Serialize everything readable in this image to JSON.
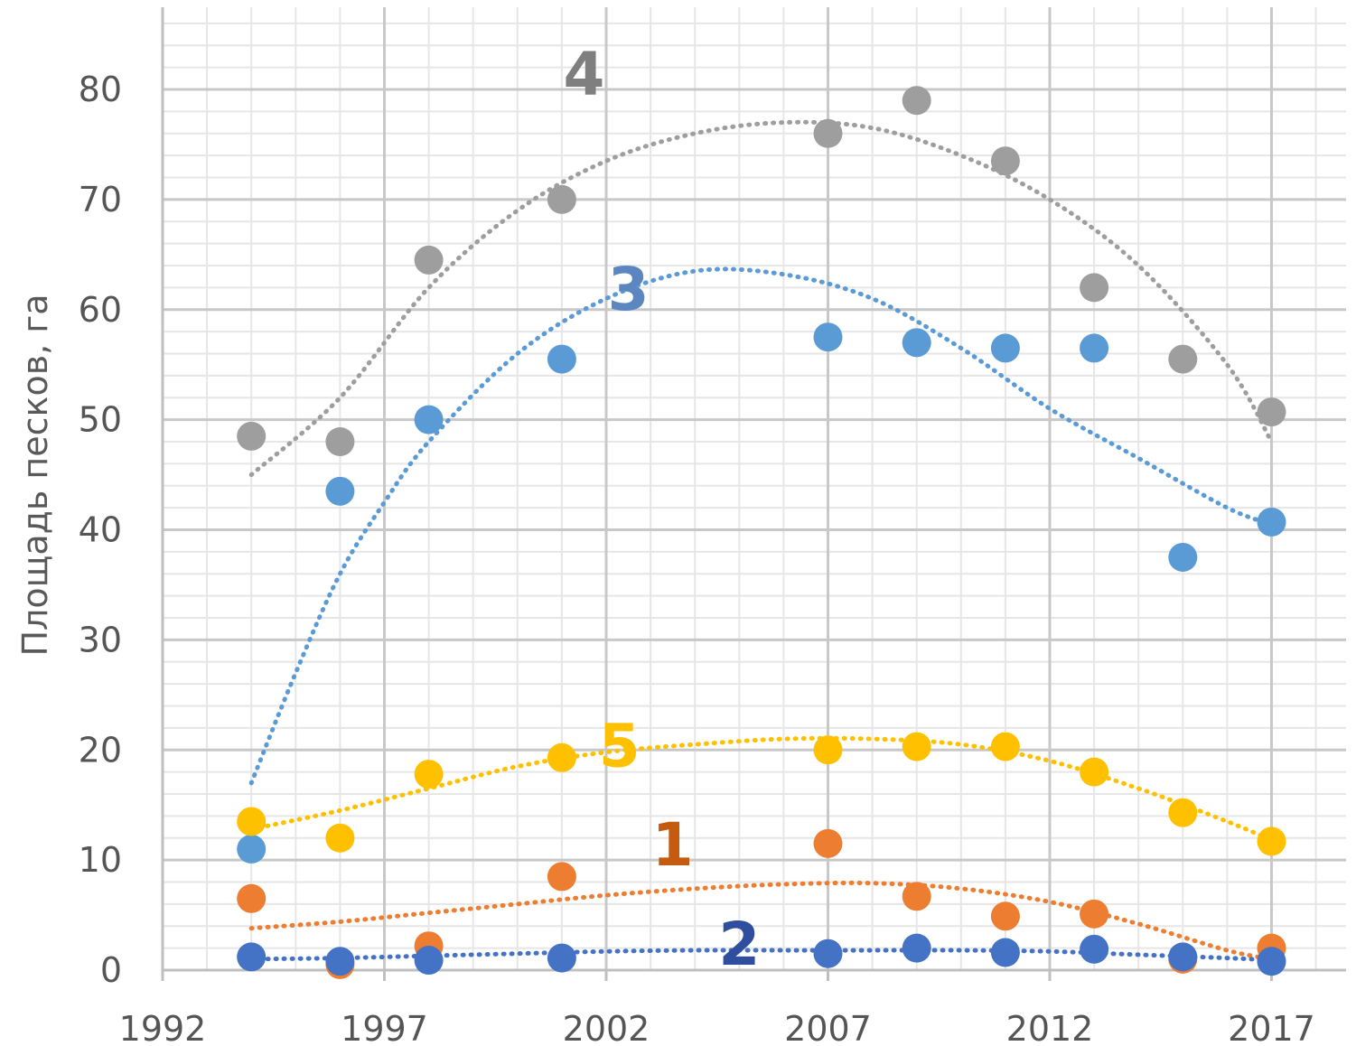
{
  "chart_data": {
    "type": "scatter",
    "title": "",
    "xlabel": "",
    "ylabel": "Площадь песков, га",
    "xlim": [
      1992,
      2019
    ],
    "ylim": [
      0,
      80
    ],
    "x_ticks": [
      "1992",
      "1997",
      "2002",
      "2007",
      "2012",
      "2017"
    ],
    "y_ticks": [
      "0",
      "10",
      "20",
      "30",
      "40",
      "50",
      "60",
      "70",
      "80"
    ],
    "grid": "major and minor",
    "trendline_style": "dotted polynomial",
    "series": [
      {
        "label": "4",
        "color": "#9e9e9e",
        "x": [
          1994,
          1996,
          1998,
          2001,
          2007,
          2009,
          2011,
          2013,
          2015,
          2017
        ],
        "y": [
          48.5,
          48,
          64.5,
          70,
          76,
          79,
          73.5,
          62,
          55.5,
          50.7
        ],
        "trend": [
          [
            1994,
            45
          ],
          [
            1996,
            52
          ],
          [
            1998,
            62
          ],
          [
            2000,
            69
          ],
          [
            2002,
            73.5
          ],
          [
            2004,
            76
          ],
          [
            2006,
            77
          ],
          [
            2008,
            76.5
          ],
          [
            2010,
            74
          ],
          [
            2012,
            70
          ],
          [
            2014,
            64
          ],
          [
            2016,
            55
          ],
          [
            2017,
            48
          ]
        ]
      },
      {
        "label": "3",
        "color": "#5b9bd5",
        "x": [
          1994,
          1996,
          1998,
          2001,
          2007,
          2009,
          2011,
          2013,
          2015,
          2017
        ],
        "y": [
          11,
          43.5,
          50,
          55.5,
          57.5,
          57,
          56.5,
          56.5,
          37.5,
          40.7
        ],
        "trend": [
          [
            1994,
            17
          ],
          [
            1995,
            27
          ],
          [
            1996,
            36
          ],
          [
            1997,
            42.5
          ],
          [
            1998,
            48
          ],
          [
            2000,
            56
          ],
          [
            2002,
            61
          ],
          [
            2004,
            63.5
          ],
          [
            2006,
            63.2
          ],
          [
            2008,
            61
          ],
          [
            2010,
            56.5
          ],
          [
            2012,
            51
          ],
          [
            2014,
            46.5
          ],
          [
            2016,
            42
          ],
          [
            2017,
            40.5
          ]
        ]
      },
      {
        "label": "5",
        "color": "#ffc000",
        "x": [
          1994,
          1996,
          1998,
          2001,
          2007,
          2009,
          2011,
          2013,
          2015,
          2017
        ],
        "y": [
          13.5,
          12,
          17.8,
          19.3,
          20,
          20.3,
          20.3,
          18,
          14.3,
          11.7
        ],
        "trend": [
          [
            1994,
            12.8
          ],
          [
            1996,
            14.5
          ],
          [
            1998,
            16.5
          ],
          [
            2000,
            18.5
          ],
          [
            2002,
            19.8
          ],
          [
            2004,
            20.5
          ],
          [
            2006,
            21
          ],
          [
            2008,
            21
          ],
          [
            2010,
            20.5
          ],
          [
            2012,
            19
          ],
          [
            2014,
            16.5
          ],
          [
            2016,
            13.5
          ],
          [
            2017,
            11.8
          ]
        ]
      },
      {
        "label": "1",
        "color": "#ed7d31",
        "x": [
          1994,
          1996,
          1998,
          2001,
          2007,
          2009,
          2011,
          2013,
          2015,
          2017
        ],
        "y": [
          6.5,
          0.5,
          2.2,
          8.5,
          11.5,
          6.7,
          4.9,
          5.1,
          1,
          2
        ],
        "trend": [
          [
            1994,
            3.8
          ],
          [
            1996,
            4.4
          ],
          [
            1998,
            5.2
          ],
          [
            2000,
            6
          ],
          [
            2002,
            6.8
          ],
          [
            2004,
            7.4
          ],
          [
            2006,
            7.8
          ],
          [
            2008,
            7.9
          ],
          [
            2010,
            7.4
          ],
          [
            2012,
            6.2
          ],
          [
            2014,
            4.2
          ],
          [
            2016,
            1.8
          ],
          [
            2017,
            1
          ]
        ]
      },
      {
        "label": "2",
        "color": "#4472c4",
        "x": [
          1994,
          1996,
          1998,
          2001,
          2007,
          2009,
          2011,
          2013,
          2015,
          2017
        ],
        "y": [
          1.2,
          0.8,
          0.9,
          1.1,
          1.5,
          2,
          1.6,
          1.9,
          1.2,
          0.8
        ],
        "trend": [
          [
            1994,
            1
          ],
          [
            1996,
            1.1
          ],
          [
            1998,
            1.3
          ],
          [
            2000,
            1.5
          ],
          [
            2002,
            1.7
          ],
          [
            2004,
            1.8
          ],
          [
            2006,
            1.8
          ],
          [
            2008,
            1.8
          ],
          [
            2010,
            1.8
          ],
          [
            2012,
            1.7
          ],
          [
            2014,
            1.4
          ],
          [
            2016,
            1.1
          ],
          [
            2017,
            0.9
          ]
        ]
      }
    ],
    "series_label_colors": {
      "4": "#7f7f7f",
      "3": "#5b86c0",
      "5": "#ffc000",
      "1": "#c55a11",
      "2": "#2f4f9e"
    }
  }
}
